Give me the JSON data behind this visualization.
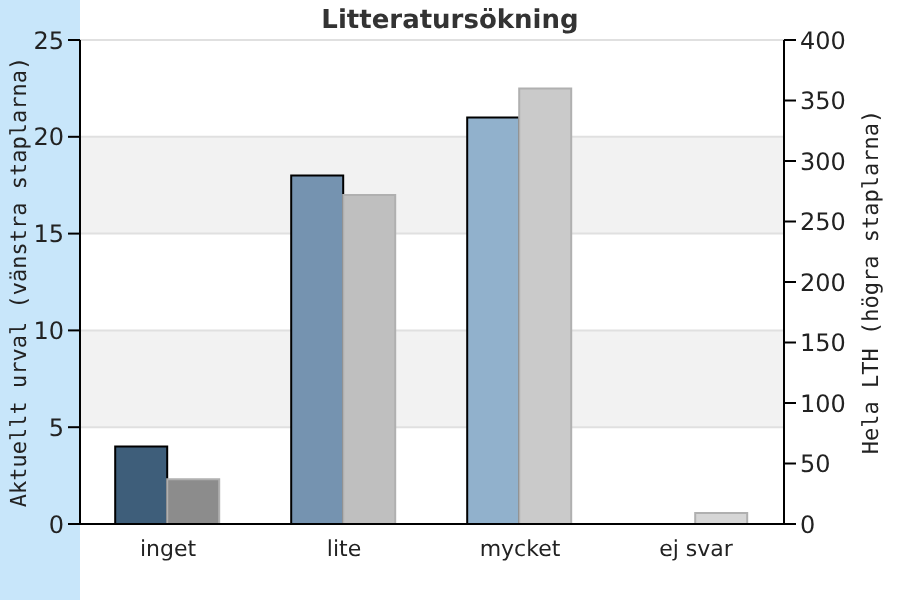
{
  "chart_data": {
    "type": "bar",
    "title": "Litteratursökning",
    "ylabel": "Aktuellt urval (vänstra staplarna)",
    "y2label": "Hela LTH (högra staplarna)",
    "categories": [
      "inget",
      "lite",
      "mycket",
      "ej svar"
    ],
    "series": [
      {
        "colors": [
          "#3e5e7a",
          "#7593b0",
          "#91b1cc",
          "#91b1cc"
        ],
        "values": [
          4,
          18,
          21,
          0
        ]
      },
      {
        "axis": "y2",
        "colors": [
          "#8c8c8c",
          "#bfbfbf",
          "#cacaca",
          "#d6d6d6"
        ],
        "values": [
          37,
          272,
          360,
          9
        ]
      }
    ],
    "ylim": [
      0,
      25
    ],
    "yticks": [
      0,
      5,
      10,
      15,
      20,
      25
    ],
    "y2lim": [
      0,
      400
    ],
    "y2ticks": [
      0,
      50,
      100,
      150,
      200,
      250,
      300,
      350,
      400
    ],
    "grid": "y",
    "legend": false
  }
}
